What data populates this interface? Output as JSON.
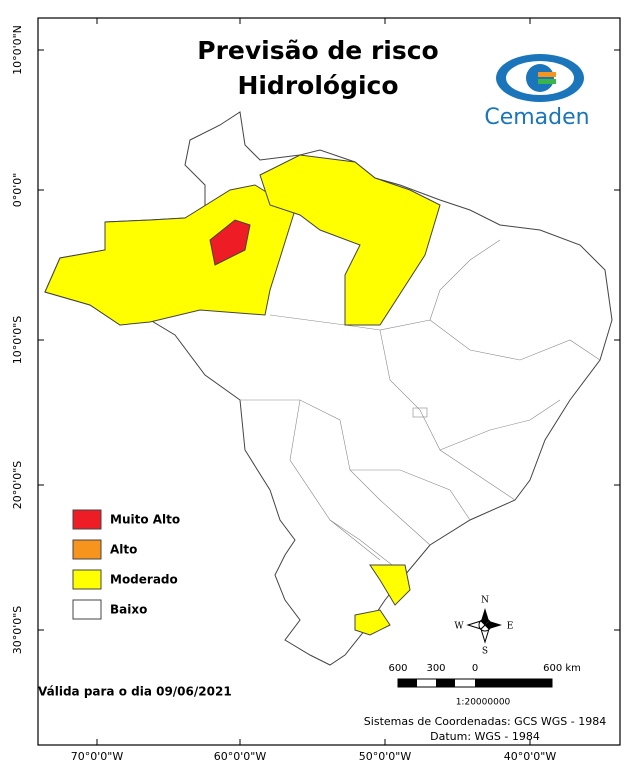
{
  "header": {
    "title": [
      "Previsão de risco",
      "Hidrológico"
    ]
  },
  "logo": {
    "text": "Cemaden"
  },
  "axes": {
    "lat_labels": [
      "10°0'0\"N",
      "0°0'0\"",
      "10°0'0\"S",
      "20°0'0\"S",
      "30°0'0\"S"
    ],
    "lon_labels": [
      "70°0'0\"W",
      "60°0'0\"W",
      "50°0'0\"W",
      "40°0'0\"W"
    ]
  },
  "legend": {
    "items": [
      {
        "label": "Muito Alto",
        "color": "#ee1c24"
      },
      {
        "label": "Alto",
        "color": "#f7941d"
      },
      {
        "label": "Moderado",
        "color": "#ffff00"
      },
      {
        "label": "Baixo",
        "color": "#ffffff"
      }
    ]
  },
  "validity": "Válida para o dia 09/06/2021",
  "scale": {
    "labels": [
      "600",
      "300",
      "0",
      "600 km"
    ],
    "ratio": "1:20000000"
  },
  "compass": {
    "n": "N",
    "s": "S",
    "e": "E",
    "w": "W"
  },
  "footer": [
    "Sistemas de Coordenadas: GCS WGS - 1984",
    "Datum: WGS - 1984"
  ]
}
